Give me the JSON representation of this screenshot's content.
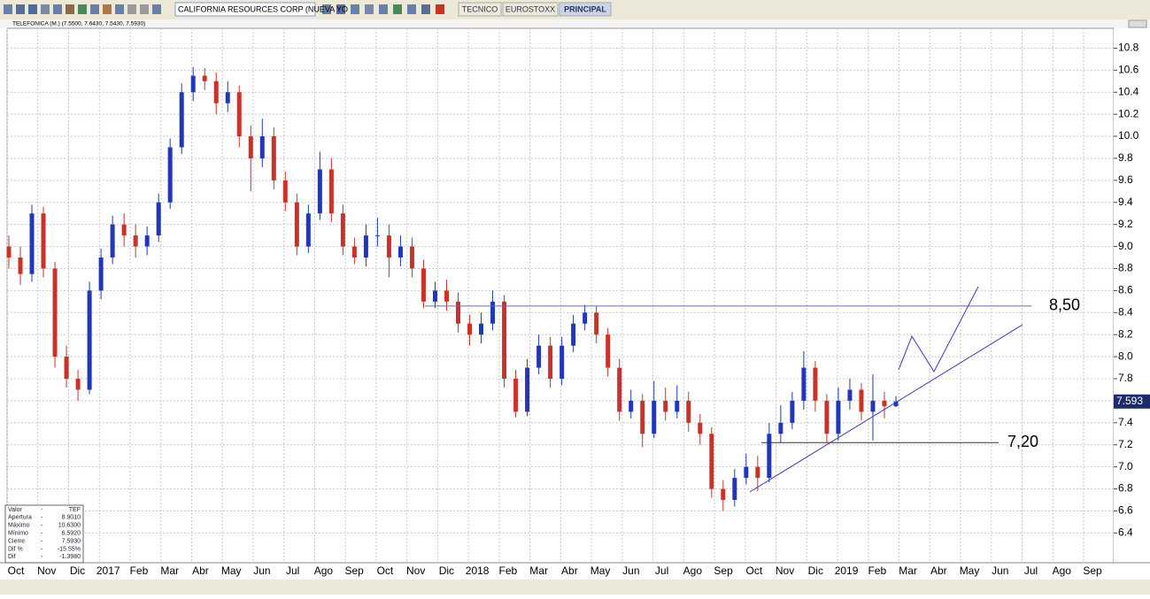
{
  "toolbar": {
    "symbol": "CALIFORNIA RESOURCES CORP (NUEVA YO",
    "tabs": [
      "TECNICO",
      "EUROSTOXX",
      "PRINCIPAL"
    ]
  },
  "panel_title": "TELEFONICA (M.) (7.5500, 7.6430, 7.5430, 7.5930)",
  "info_panel": {
    "rows": [
      [
        "Valor",
        "-",
        "TEF"
      ],
      [
        "Apertura",
        "-",
        "8.9010"
      ],
      [
        "Máximo",
        "-",
        "10.6300"
      ],
      [
        "Mínimo",
        "-",
        "6.5920"
      ],
      [
        "Cierre",
        "-",
        "7.5930"
      ],
      [
        "Dif %",
        "-",
        "-15.55%"
      ],
      [
        "Dif",
        "-",
        "-1.3980"
      ]
    ]
  },
  "chart_data": {
    "type": "candlestick",
    "categories": [
      "Oct",
      "Nov",
      "Dic",
      "2017",
      "Feb",
      "Mar",
      "Abr",
      "May",
      "Jun",
      "Jul",
      "Ago",
      "Sep",
      "Oct",
      "Nov",
      "Dic",
      "2018",
      "Feb",
      "Mar",
      "Abr",
      "May",
      "Jun",
      "Jul",
      "Ago",
      "Sep",
      "Oct",
      "Nov",
      "Dic",
      "2019",
      "Feb",
      "Mar",
      "Abr",
      "May",
      "Jun",
      "Jul",
      "Ago",
      "Sep"
    ],
    "open": [
      9.0,
      8.9,
      8.75,
      9.3,
      8.8,
      8.0,
      7.8,
      7.7,
      8.6,
      8.9,
      9.2,
      9.1,
      9.0,
      9.1,
      9.4,
      9.9,
      10.4,
      10.55,
      10.5,
      10.3,
      10.4,
      10.0,
      9.8,
      10.0,
      9.6,
      9.4,
      9.0,
      9.3,
      9.7,
      9.3,
      9.0,
      8.9,
      9.1,
      9.1,
      8.9,
      9.0,
      8.8,
      8.5,
      8.6,
      8.5,
      8.3,
      8.2,
      8.3,
      8.5,
      7.8,
      7.5,
      7.9,
      8.1,
      7.8,
      8.1,
      8.3,
      8.4,
      8.2,
      7.9,
      7.5,
      7.6,
      7.3,
      7.6,
      7.5,
      7.6,
      7.4,
      7.3,
      6.8,
      6.7,
      6.9,
      7.0,
      6.9,
      7.3,
      7.4,
      7.6,
      7.9,
      7.6,
      7.3,
      7.6,
      7.7,
      7.5,
      7.6,
      7.55
    ],
    "high": [
      9.1,
      9.0,
      9.38,
      9.36,
      8.86,
      8.1,
      7.88,
      8.68,
      8.98,
      9.28,
      9.3,
      9.2,
      9.18,
      9.48,
      9.98,
      10.48,
      10.63,
      10.62,
      10.58,
      10.5,
      10.46,
      10.1,
      10.16,
      10.08,
      9.68,
      9.48,
      9.38,
      9.86,
      9.8,
      9.38,
      9.08,
      9.2,
      9.26,
      9.2,
      9.1,
      9.08,
      8.88,
      8.68,
      8.7,
      8.58,
      8.38,
      8.4,
      8.6,
      8.56,
      7.88,
      7.98,
      8.2,
      8.18,
      8.18,
      8.38,
      8.47,
      8.46,
      8.26,
      7.98,
      7.7,
      7.66,
      7.78,
      7.72,
      7.74,
      7.68,
      7.48,
      7.36,
      6.88,
      6.98,
      7.12,
      7.1,
      7.4,
      7.56,
      7.68,
      8.05,
      7.96,
      7.66,
      7.72,
      7.8,
      7.76,
      7.84,
      7.68,
      7.643
    ],
    "low": [
      8.8,
      8.65,
      8.68,
      8.72,
      7.9,
      7.72,
      7.6,
      7.66,
      8.52,
      8.84,
      9.0,
      8.9,
      8.92,
      9.04,
      9.34,
      9.84,
      10.32,
      10.42,
      10.2,
      10.22,
      9.9,
      9.5,
      9.72,
      9.52,
      9.32,
      8.92,
      8.94,
      9.24,
      9.22,
      8.92,
      8.84,
      8.82,
      9.0,
      8.72,
      8.82,
      8.72,
      8.44,
      8.44,
      8.42,
      8.22,
      8.1,
      8.12,
      8.24,
      7.72,
      7.45,
      7.46,
      7.84,
      7.72,
      7.74,
      8.04,
      8.24,
      8.12,
      7.82,
      7.42,
      7.44,
      7.18,
      7.26,
      7.42,
      7.44,
      7.32,
      7.2,
      6.72,
      6.6,
      6.64,
      6.84,
      6.78,
      6.86,
      7.22,
      7.34,
      7.52,
      7.5,
      7.22,
      7.24,
      7.52,
      7.42,
      7.24,
      7.44,
      7.543
    ],
    "close": [
      8.9,
      8.75,
      9.3,
      8.8,
      8.0,
      7.8,
      7.7,
      8.6,
      8.9,
      9.2,
      9.1,
      9.0,
      9.1,
      9.4,
      9.9,
      10.4,
      10.55,
      10.5,
      10.3,
      10.4,
      10.0,
      9.8,
      10.0,
      9.6,
      9.4,
      9.0,
      9.3,
      9.7,
      9.3,
      9.0,
      8.9,
      9.1,
      9.1,
      8.9,
      9.0,
      8.8,
      8.5,
      8.6,
      8.5,
      8.3,
      8.2,
      8.3,
      8.5,
      7.8,
      7.5,
      7.9,
      8.1,
      7.8,
      8.1,
      8.3,
      8.4,
      8.2,
      7.9,
      7.5,
      7.6,
      7.3,
      7.6,
      7.5,
      7.6,
      7.4,
      7.3,
      6.8,
      6.7,
      6.9,
      7.0,
      6.9,
      7.3,
      7.4,
      7.6,
      7.9,
      7.6,
      7.3,
      7.6,
      7.7,
      7.5,
      7.6,
      7.55,
      7.593
    ],
    "up_color": "#2038b8",
    "down_color": "#c83228",
    "ylim": [
      6.13,
      10.98
    ],
    "yticks": [
      6.4,
      6.6,
      6.8,
      {
        "value": 7,
        "label": "7.0"
      },
      7.2,
      7.4,
      7.6,
      7.8,
      {
        "value": 8,
        "label": "8.0"
      },
      8.2,
      8.4,
      8.6,
      8.8,
      {
        "value": 9,
        "label": "9.0"
      },
      9.2,
      9.4,
      9.6,
      9.8,
      {
        "value": 10,
        "label": "10.0"
      },
      10.2,
      10.4,
      10.6,
      10.8
    ],
    "grid": true,
    "last_price": 7.593,
    "annotations": [
      {
        "label": "8,50",
        "value": 8.46
      },
      {
        "label": "7,20",
        "value": 7.22
      }
    ]
  }
}
